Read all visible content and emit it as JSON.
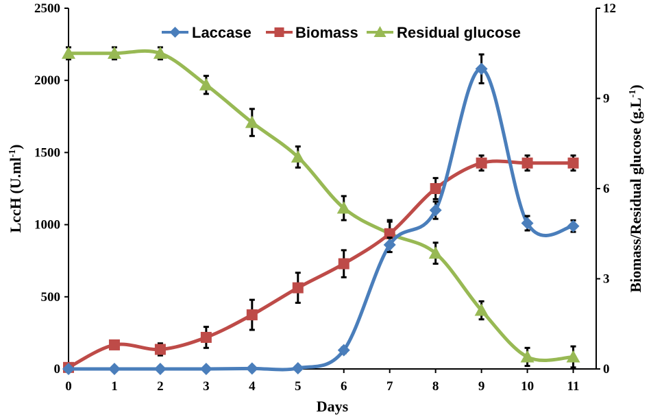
{
  "chart_data": {
    "type": "line",
    "x": [
      0,
      1,
      2,
      3,
      4,
      5,
      6,
      7,
      8,
      9,
      10,
      11
    ],
    "xlabel": "Days",
    "ylabel_left_main": "LccH (U.ml",
    "ylabel_left_sup": "-1",
    "ylabel_left_end": ")",
    "ylabel_right_main": "Biomass/Residual  glucose (g.L",
    "ylabel_right_sup": "-1",
    "ylabel_right_end": ")",
    "ylim_left": [
      0,
      2500
    ],
    "yticks_left": [
      "0",
      "500",
      "1000",
      "1500",
      "2000",
      "2500"
    ],
    "ylim_right": [
      0,
      12
    ],
    "yticks_right": [
      "0",
      "3",
      "6",
      "9",
      "12"
    ],
    "xticks": [
      "0",
      "1",
      "2",
      "3",
      "4",
      "5",
      "6",
      "7",
      "8",
      "9",
      "10",
      "11"
    ],
    "legend_position": "top",
    "series": [
      {
        "name": "Laccase",
        "axis": "left",
        "color": "#4a7ebb",
        "marker": "diamond",
        "values": [
          0,
          0,
          0,
          0,
          3,
          5,
          130,
          860,
          1100,
          2080,
          1010,
          990
        ],
        "errors": [
          0,
          0,
          0,
          0,
          0,
          0,
          20,
          50,
          60,
          100,
          50,
          40
        ]
      },
      {
        "name": "Biomass",
        "axis": "right",
        "color": "#be4b48",
        "marker": "square",
        "values": [
          0.05,
          0.8,
          0.65,
          1.05,
          1.8,
          2.7,
          3.5,
          4.5,
          6.0,
          6.85,
          6.85,
          6.85
        ],
        "errors": [
          0,
          0.1,
          0.2,
          0.35,
          0.5,
          0.5,
          0.45,
          0.45,
          0.35,
          0.25,
          0.25,
          0.25
        ]
      },
      {
        "name": "Residual glucose",
        "axis": "right",
        "color": "#98b954",
        "marker": "triangle",
        "values": [
          10.5,
          10.5,
          10.5,
          9.45,
          8.2,
          7.05,
          5.35,
          4.5,
          3.85,
          1.95,
          0.4,
          0.4
        ],
        "errors": [
          0.2,
          0.2,
          0.2,
          0.3,
          0.45,
          0.35,
          0.4,
          0.4,
          0.35,
          0.3,
          0.3,
          0.35
        ]
      }
    ]
  }
}
